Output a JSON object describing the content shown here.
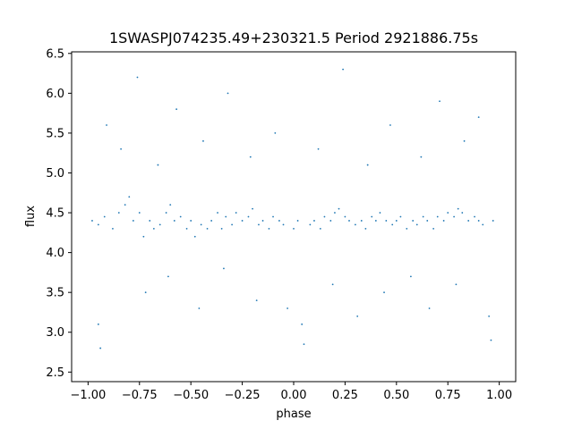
{
  "chart_data": {
    "type": "scatter",
    "title": "1SWASPJ074235.49+230321.5 Period 2921886.75s",
    "xlabel": "phase",
    "ylabel": "flux",
    "xlim": [
      -1.08,
      1.08
    ],
    "ylim": [
      2.38,
      6.52
    ],
    "grid": false,
    "legend": "none",
    "point_color": "#1f77b4",
    "xticks": [
      {
        "value": -1.0,
        "label": "−1.00"
      },
      {
        "value": -0.75,
        "label": "−0.75"
      },
      {
        "value": -0.5,
        "label": "−0.50"
      },
      {
        "value": -0.25,
        "label": "−0.25"
      },
      {
        "value": 0.0,
        "label": "0.00"
      },
      {
        "value": 0.25,
        "label": "0.25"
      },
      {
        "value": 0.5,
        "label": "0.50"
      },
      {
        "value": 0.75,
        "label": "0.75"
      },
      {
        "value": 1.0,
        "label": "1.00"
      }
    ],
    "yticks": [
      {
        "value": 2.5,
        "label": "2.5"
      },
      {
        "value": 3.0,
        "label": "3.0"
      },
      {
        "value": 3.5,
        "label": "3.5"
      },
      {
        "value": 4.0,
        "label": "4.0"
      },
      {
        "value": 4.5,
        "label": "4.5"
      },
      {
        "value": 5.0,
        "label": "5.0"
      },
      {
        "value": 5.5,
        "label": "5.5"
      },
      {
        "value": 6.0,
        "label": "6.0"
      },
      {
        "value": 6.5,
        "label": "6.5"
      }
    ],
    "series": [
      {
        "points": [
          [
            -0.98,
            4.4
          ],
          [
            -0.95,
            4.35
          ],
          [
            -0.95,
            3.1
          ],
          [
            -0.94,
            2.8
          ],
          [
            -0.92,
            4.45
          ],
          [
            -0.88,
            4.3
          ],
          [
            -0.85,
            4.5
          ],
          [
            -0.82,
            4.6
          ],
          [
            -0.8,
            4.7
          ],
          [
            -0.78,
            4.4
          ],
          [
            -0.75,
            4.5
          ],
          [
            -0.73,
            4.2
          ],
          [
            -0.7,
            4.4
          ],
          [
            -0.68,
            4.3
          ],
          [
            -0.65,
            4.35
          ],
          [
            -0.62,
            4.5
          ],
          [
            -0.6,
            4.6
          ],
          [
            -0.58,
            4.4
          ],
          [
            -0.55,
            4.45
          ],
          [
            -0.52,
            4.3
          ],
          [
            -0.5,
            4.4
          ],
          [
            -0.48,
            4.2
          ],
          [
            -0.45,
            4.35
          ],
          [
            -0.42,
            4.3
          ],
          [
            -0.4,
            4.4
          ],
          [
            -0.37,
            4.5
          ],
          [
            -0.35,
            4.3
          ],
          [
            -0.33,
            4.45
          ],
          [
            -0.3,
            4.35
          ],
          [
            -0.28,
            4.5
          ],
          [
            -0.25,
            4.4
          ],
          [
            -0.22,
            4.45
          ],
          [
            -0.2,
            4.55
          ],
          [
            -0.17,
            4.35
          ],
          [
            -0.15,
            4.4
          ],
          [
            -0.12,
            4.3
          ],
          [
            -0.1,
            4.45
          ],
          [
            -0.07,
            4.4
          ],
          [
            -0.05,
            4.35
          ],
          [
            -0.03,
            3.3
          ],
          [
            0.0,
            4.3
          ],
          [
            0.02,
            4.4
          ],
          [
            0.04,
            3.1
          ],
          [
            0.05,
            2.85
          ],
          [
            0.08,
            4.35
          ],
          [
            0.1,
            4.4
          ],
          [
            0.13,
            4.3
          ],
          [
            0.15,
            4.45
          ],
          [
            0.18,
            4.4
          ],
          [
            0.2,
            4.5
          ],
          [
            0.22,
            4.55
          ],
          [
            0.25,
            4.45
          ],
          [
            0.27,
            4.4
          ],
          [
            0.3,
            4.35
          ],
          [
            0.33,
            4.4
          ],
          [
            0.35,
            4.3
          ],
          [
            0.38,
            4.45
          ],
          [
            0.4,
            4.4
          ],
          [
            0.42,
            4.5
          ],
          [
            0.45,
            4.4
          ],
          [
            0.48,
            4.35
          ],
          [
            0.5,
            4.4
          ],
          [
            0.52,
            4.45
          ],
          [
            0.55,
            4.3
          ],
          [
            0.58,
            4.4
          ],
          [
            0.6,
            4.35
          ],
          [
            0.63,
            4.45
          ],
          [
            0.65,
            4.4
          ],
          [
            0.68,
            4.3
          ],
          [
            0.7,
            4.45
          ],
          [
            0.73,
            4.4
          ],
          [
            0.75,
            4.5
          ],
          [
            0.78,
            4.45
          ],
          [
            0.8,
            4.55
          ],
          [
            0.82,
            4.5
          ],
          [
            0.85,
            4.4
          ],
          [
            0.88,
            4.45
          ],
          [
            0.9,
            4.4
          ],
          [
            0.92,
            4.35
          ],
          [
            0.95,
            3.2
          ],
          [
            0.96,
            2.9
          ],
          [
            0.97,
            4.4
          ],
          [
            -0.91,
            5.6
          ],
          [
            -0.84,
            5.3
          ],
          [
            -0.76,
            6.2
          ],
          [
            -0.66,
            5.1
          ],
          [
            -0.57,
            5.8
          ],
          [
            -0.44,
            5.4
          ],
          [
            -0.32,
            6.0
          ],
          [
            -0.21,
            5.2
          ],
          [
            -0.09,
            5.5
          ],
          [
            0.12,
            5.3
          ],
          [
            0.24,
            6.3
          ],
          [
            0.36,
            5.1
          ],
          [
            0.47,
            5.6
          ],
          [
            0.62,
            5.2
          ],
          [
            0.71,
            5.9
          ],
          [
            0.83,
            5.4
          ],
          [
            0.9,
            5.7
          ],
          [
            -0.72,
            3.5
          ],
          [
            -0.61,
            3.7
          ],
          [
            -0.46,
            3.3
          ],
          [
            -0.34,
            3.8
          ],
          [
            -0.18,
            3.4
          ],
          [
            0.19,
            3.6
          ],
          [
            0.31,
            3.2
          ],
          [
            0.44,
            3.5
          ],
          [
            0.57,
            3.7
          ],
          [
            0.66,
            3.3
          ],
          [
            0.79,
            3.6
          ]
        ]
      }
    ]
  }
}
